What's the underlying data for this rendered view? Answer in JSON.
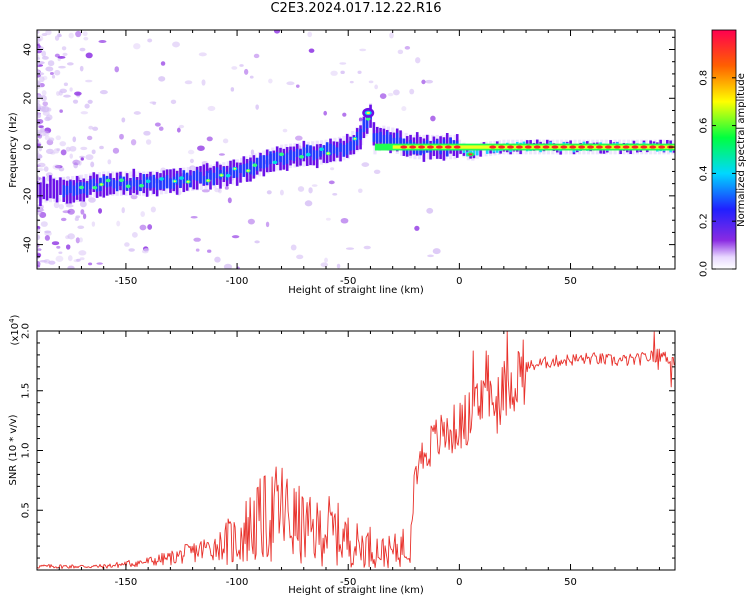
{
  "title": "C2E3.2024.017.12.22.R16",
  "chart_data": [
    {
      "type": "heatmap",
      "xlabel": "Height of straight line (km)",
      "ylabel": "Frequency (Hz)",
      "xlim": [
        -190,
        97
      ],
      "ylim": [
        -50,
        48
      ],
      "x_ticks": [
        -150,
        -100,
        -50,
        0,
        50
      ],
      "y_ticks": [
        -40,
        -20,
        0,
        20,
        40
      ],
      "colorbar": {
        "label": "Normalized spectral amplitude",
        "range": [
          0,
          1
        ],
        "ticks": [
          "0.0",
          "0.2",
          "0.4",
          "0.6",
          "0.8"
        ]
      },
      "ridge": {
        "x": [
          -190,
          -175,
          -160,
          -150,
          -140,
          -130,
          -120,
          -110,
          -100,
          -90,
          -80,
          -70,
          -60,
          -50,
          -45,
          -40,
          -38,
          -35,
          -30,
          -25,
          -20,
          -10,
          0,
          5,
          10,
          20,
          40,
          60,
          80,
          97
        ],
        "y": [
          -18,
          -17,
          -15,
          -15,
          -15,
          -14,
          -13,
          -12,
          -10,
          -7,
          -4,
          -3,
          -2,
          0,
          4,
          13,
          2,
          4,
          3,
          1,
          0,
          0,
          0,
          -3,
          -1,
          0,
          0,
          0,
          0,
          0
        ]
      }
    },
    {
      "type": "line",
      "xlabel": "Height of straight line (km)",
      "ylabel": "SNR (10 * v/v)",
      "y_multiplier": "(x10",
      "y_multiplier_exp": "4",
      "xlim": [
        -190,
        97
      ],
      "ylim": [
        0,
        20000
      ],
      "x_ticks": [
        -150,
        -100,
        -50,
        0,
        50
      ],
      "y_ticks": [
        {
          "value": 5000,
          "label": "0.5"
        },
        {
          "value": 10000,
          "label": "1.0"
        },
        {
          "value": 15000,
          "label": "1.5"
        },
        {
          "value": 20000,
          "label": "2.0"
        }
      ],
      "line_color": "#e8302a",
      "series": [
        {
          "x": [
            -190,
            -175,
            -160,
            -150,
            -140,
            -130,
            -120,
            -110,
            -100,
            -95,
            -90,
            -85,
            -80,
            -75,
            -70,
            -65,
            -60,
            -55,
            -50,
            -45,
            -40,
            -35,
            -30,
            -25,
            -22,
            -20,
            -18,
            -15,
            -10,
            -5,
            0,
            5,
            10,
            12,
            15,
            20,
            25,
            30,
            40,
            50,
            60,
            70,
            80,
            90,
            97
          ],
          "y": [
            300,
            300,
            300,
            500,
            700,
            1000,
            1500,
            2000,
            2500,
            3500,
            4000,
            4500,
            5000,
            4000,
            3500,
            3000,
            3500,
            3000,
            2500,
            2000,
            2000,
            1500,
            1500,
            2000,
            2500,
            8000,
            9000,
            10000,
            11000,
            11500,
            12000,
            13000,
            14000,
            17000,
            13000,
            15000,
            16000,
            17000,
            17400,
            17600,
            17700,
            17500,
            17600,
            18000,
            17500
          ]
        }
      ]
    }
  ]
}
